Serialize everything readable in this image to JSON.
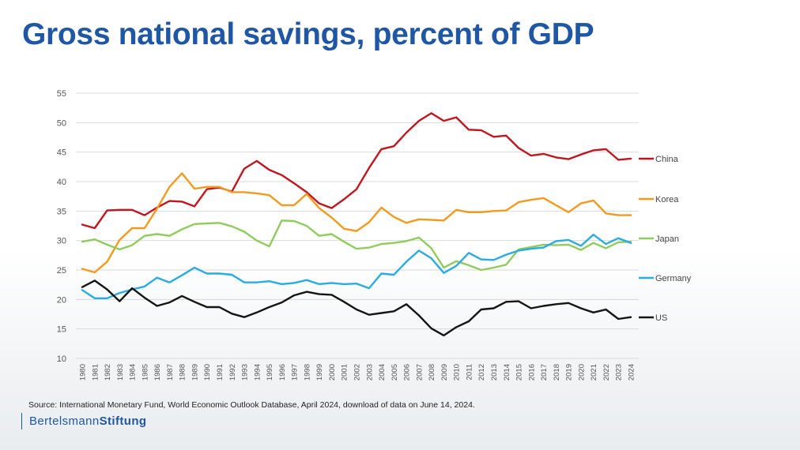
{
  "title": "Gross national savings, percent of GDP",
  "source": "Source: International Monetary Fund, World Economic Outlook Database, April 2024, download of data on June 14, 2024.",
  "brand": {
    "part1": "Bertelsmann",
    "part2": "Stiftung"
  },
  "chart_data": {
    "type": "line",
    "x": [
      1980,
      1981,
      1982,
      1983,
      1984,
      1985,
      1986,
      1987,
      1988,
      1989,
      1990,
      1991,
      1992,
      1993,
      1994,
      1995,
      1996,
      1997,
      1998,
      1999,
      2000,
      2001,
      2002,
      2003,
      2004,
      2005,
      2006,
      2007,
      2008,
      2009,
      2010,
      2011,
      2012,
      2013,
      2014,
      2015,
      2016,
      2017,
      2018,
      2019,
      2020,
      2021,
      2022,
      2023,
      2024
    ],
    "ylim": [
      10,
      55
    ],
    "yticks": [
      10,
      15,
      20,
      25,
      30,
      35,
      40,
      45,
      50,
      55
    ],
    "grid": true,
    "legend": "right, at line ends",
    "series": [
      {
        "name": "China",
        "color": "#c0161d",
        "values": [
          32.7,
          32.1,
          35.1,
          35.2,
          35.2,
          34.3,
          35.6,
          36.7,
          36.6,
          35.8,
          38.7,
          39.0,
          38.3,
          42.2,
          43.5,
          42.0,
          41.1,
          39.7,
          38.2,
          36.3,
          35.5,
          37.0,
          38.7,
          42.3,
          45.5,
          46.0,
          48.3,
          50.3,
          51.6,
          50.3,
          50.9,
          48.8,
          48.7,
          47.6,
          47.8,
          45.7,
          44.4,
          44.7,
          44.1,
          43.8,
          44.6,
          45.3,
          45.5,
          43.7,
          43.9
        ]
      },
      {
        "name": "Korea",
        "color": "#f39a1e",
        "values": [
          25.2,
          24.6,
          26.4,
          30.1,
          32.1,
          32.1,
          35.4,
          39.1,
          41.4,
          38.8,
          39.1,
          39.1,
          38.2,
          38.2,
          38.0,
          37.7,
          36.0,
          36.0,
          37.9,
          35.5,
          33.9,
          32.0,
          31.6,
          33.1,
          35.6,
          34.0,
          33.0,
          33.6,
          33.5,
          33.4,
          35.2,
          34.8,
          34.8,
          35.0,
          35.1,
          36.5,
          36.9,
          37.2,
          36.0,
          34.8,
          36.3,
          36.8,
          34.6,
          34.3,
          34.3
        ]
      },
      {
        "name": "Japan",
        "color": "#8fcc5c",
        "values": [
          29.8,
          30.2,
          29.3,
          28.5,
          29.2,
          30.8,
          31.1,
          30.8,
          31.9,
          32.8,
          32.9,
          33.0,
          32.4,
          31.5,
          30.0,
          29.0,
          33.4,
          33.3,
          32.5,
          30.8,
          31.1,
          29.8,
          28.6,
          28.8,
          29.4,
          29.6,
          29.9,
          30.5,
          28.7,
          25.4,
          26.5,
          25.8,
          25.0,
          25.4,
          25.9,
          28.5,
          28.9,
          29.3,
          29.2,
          29.3,
          28.4,
          29.6,
          28.7,
          29.7,
          29.8
        ]
      },
      {
        "name": "Germany",
        "color": "#2aabe2",
        "values": [
          21.6,
          20.2,
          20.2,
          21.1,
          21.7,
          22.2,
          23.7,
          22.9,
          24.1,
          25.4,
          24.4,
          24.4,
          24.2,
          22.9,
          22.9,
          23.1,
          22.6,
          22.8,
          23.3,
          22.6,
          22.8,
          22.6,
          22.7,
          21.9,
          24.4,
          24.2,
          26.4,
          28.3,
          27.0,
          24.5,
          25.7,
          27.9,
          26.8,
          26.7,
          27.6,
          28.3,
          28.6,
          28.8,
          29.9,
          30.1,
          29.1,
          31.0,
          29.4,
          30.4,
          29.6
        ]
      },
      {
        "name": "US",
        "color": "#151515",
        "values": [
          22.1,
          23.2,
          21.7,
          19.7,
          21.9,
          20.3,
          18.9,
          19.5,
          20.6,
          19.6,
          18.7,
          18.7,
          17.6,
          17.0,
          17.8,
          18.7,
          19.5,
          20.7,
          21.3,
          20.9,
          20.8,
          19.6,
          18.3,
          17.4,
          17.7,
          18.0,
          19.2,
          17.3,
          15.1,
          13.9,
          15.3,
          16.3,
          18.3,
          18.5,
          19.6,
          19.7,
          18.5,
          18.9,
          19.2,
          19.4,
          18.5,
          17.8,
          18.3,
          16.7,
          17.0
        ]
      }
    ]
  }
}
